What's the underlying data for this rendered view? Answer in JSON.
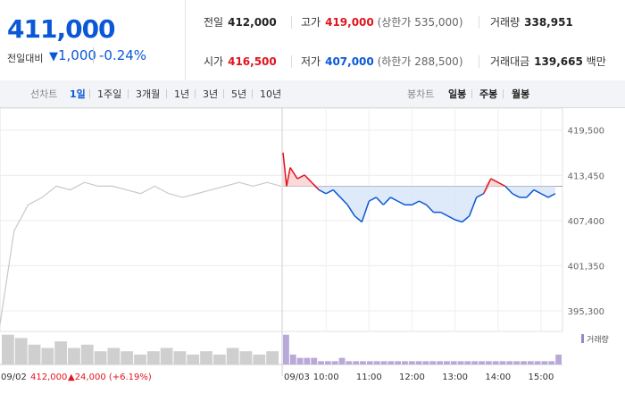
{
  "summary": {
    "price": "411,000",
    "change_label": "전일대비",
    "change_arrow": "▼",
    "change_value": "1,000",
    "change_pct": "-0.24%",
    "prev_label": "전일",
    "prev_value": "412,000",
    "high_label": "고가",
    "high_value": "419,000",
    "upper_limit": "(상한가 535,000)",
    "volume_label": "거래량",
    "volume_value": "338,951",
    "open_label": "시가",
    "open_value": "416,500",
    "low_label": "저가",
    "low_value": "407,000",
    "lower_limit": "(하한가 288,500)",
    "amount_label": "거래대금",
    "amount_value": "139,665",
    "amount_unit": "백만"
  },
  "tabs": {
    "line_label": "선차트",
    "line_items": [
      "1일",
      "1주일",
      "3개월",
      "1년",
      "3년",
      "5년",
      "10년"
    ],
    "candle_label": "봉차트",
    "candle_items": [
      "일봉",
      "주봉",
      "월봉"
    ]
  },
  "colors": {
    "up": "#e0141e",
    "down": "#0a58d6",
    "prev_day": "#c8c8c8"
  },
  "chart_data": {
    "type": "line",
    "title": "",
    "xlabel": "",
    "ylabel": "",
    "ylim": [
      393500,
      421500
    ],
    "y_ticks": [
      419500,
      413450,
      407400,
      401350,
      395300
    ],
    "y_tick_labels": [
      "419,500",
      "413,450",
      "407,400",
      "401,350",
      "395,300"
    ],
    "baseline": 412000,
    "x_tick_labels": [
      "09/02",
      "09/03",
      "10:00",
      "11:00",
      "12:00",
      "13:00",
      "14:00",
      "15:00"
    ],
    "prev_day_date": "09/02",
    "prev_day_close": "412,000",
    "prev_day_change": "▲24,000 (+6.19%)",
    "volume_legend": "거래량",
    "prev_day_series": {
      "t": [
        0,
        0.05,
        0.1,
        0.15,
        0.2,
        0.25,
        0.3,
        0.35,
        0.4,
        0.45,
        0.5,
        0.55,
        0.6,
        0.65,
        0.7,
        0.75,
        0.8,
        0.85,
        0.9,
        0.95,
        1
      ],
      "price": [
        393500,
        406000,
        409500,
        410500,
        412000,
        411500,
        412500,
        412000,
        412000,
        411500,
        411000,
        412000,
        411000,
        410500,
        411000,
        411500,
        412000,
        412500,
        412000,
        412500,
        412000
      ]
    },
    "today_series": {
      "time": [
        "09:00",
        "09:05",
        "09:10",
        "09:20",
        "09:30",
        "09:40",
        "09:50",
        "10:00",
        "10:10",
        "10:20",
        "10:30",
        "10:40",
        "10:50",
        "11:00",
        "11:10",
        "11:20",
        "11:30",
        "11:40",
        "11:50",
        "12:00",
        "12:10",
        "12:20",
        "12:30",
        "12:40",
        "12:50",
        "13:00",
        "13:10",
        "13:20",
        "13:30",
        "13:40",
        "13:50",
        "14:00",
        "14:10",
        "14:20",
        "14:30",
        "14:40",
        "14:50",
        "15:00",
        "15:10",
        "15:20"
      ],
      "price": [
        416500,
        412000,
        414500,
        413000,
        413500,
        412500,
        411500,
        411000,
        411500,
        410500,
        409500,
        408000,
        407200,
        410000,
        410500,
        409500,
        410500,
        410000,
        409500,
        409500,
        410000,
        409500,
        408500,
        408500,
        408000,
        407500,
        407200,
        408000,
        410500,
        411000,
        413000,
        412500,
        412000,
        411000,
        410500,
        410500,
        411500,
        411000,
        410500,
        411000
      ]
    },
    "volume": {
      "prev_day": [
        9,
        8,
        6,
        5,
        7,
        5,
        6,
        4,
        5,
        4,
        3,
        4,
        5,
        4,
        3,
        4,
        3,
        5,
        4,
        3,
        4
      ],
      "today": [
        9,
        3,
        2,
        2,
        2,
        1,
        1,
        1,
        2,
        1,
        1,
        1,
        1,
        1,
        1,
        1,
        1,
        1,
        1,
        1,
        1,
        1,
        1,
        1,
        1,
        1,
        1,
        1,
        1,
        1,
        1,
        1,
        1,
        1,
        1,
        1,
        1,
        1,
        1,
        3
      ]
    }
  }
}
